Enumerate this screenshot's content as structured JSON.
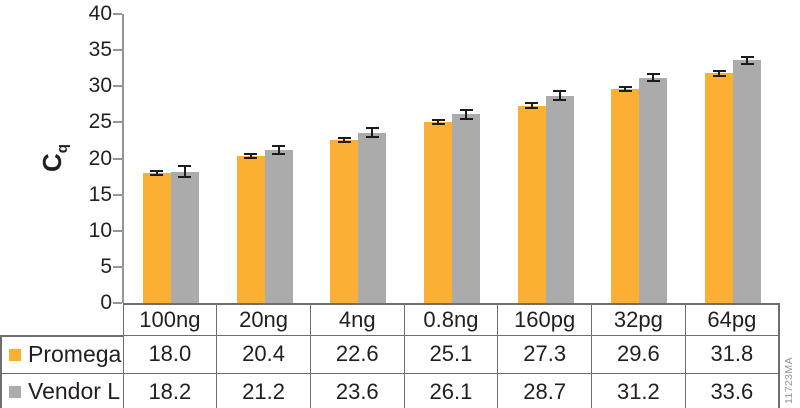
{
  "figure_id": "11723MA",
  "colors": {
    "promega_series": "#FBB034",
    "vendor_series": "#ABABAB",
    "error_bar": "#1C1C1C",
    "axis": "#939598",
    "table_border": "#6D6E71",
    "text": "#231F20",
    "figure_id_text": "#939598"
  },
  "chart_data": {
    "type": "bar",
    "title": "",
    "ylabel": "Cq",
    "ylabel_base": "C",
    "ylabel_sub": "q",
    "xlabel": "",
    "ylim": [
      0,
      40
    ],
    "yticks": [
      0,
      5,
      10,
      15,
      20,
      25,
      30,
      35,
      40
    ],
    "grid": false,
    "legend_position": "table-left",
    "categories": [
      "100ng",
      "20ng",
      "4ng",
      "0.8ng",
      "160pg",
      "32pg",
      "64pg"
    ],
    "series": [
      {
        "name": "Promega",
        "color": "#FBB034",
        "values": [
          18.0,
          20.4,
          22.6,
          25.1,
          27.3,
          29.6,
          31.8
        ],
        "errors": [
          0.12,
          0.15,
          0.12,
          0.12,
          0.18,
          0.15,
          0.18
        ]
      },
      {
        "name": "Vendor L",
        "color": "#ABABAB",
        "values": [
          18.2,
          21.2,
          23.6,
          26.1,
          28.7,
          31.2,
          33.6
        ],
        "errors": [
          0.65,
          0.45,
          0.5,
          0.5,
          0.45,
          0.35,
          0.35
        ]
      }
    ]
  }
}
